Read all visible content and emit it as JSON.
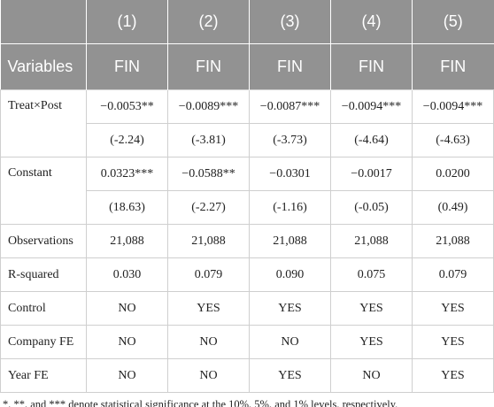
{
  "table": {
    "column_numbers": [
      "(1)",
      "(2)",
      "(3)",
      "(4)",
      "(5)"
    ],
    "variables_label": "Variables",
    "dependent_variables": [
      "FIN",
      "FIN",
      "FIN",
      "FIN",
      "FIN"
    ],
    "rows": [
      {
        "label": "Treat×Post",
        "values": [
          "−0.0053**",
          "−0.0089***",
          "−0.0087***",
          "−0.0094***",
          "−0.0094***"
        ],
        "t_stats": [
          "(-2.24)",
          "(-3.81)",
          "(-3.73)",
          "(-4.64)",
          "(-4.63)"
        ]
      },
      {
        "label": "Constant",
        "values": [
          "0.0323***",
          "−0.0588**",
          "−0.0301",
          "−0.0017",
          "0.0200"
        ],
        "t_stats": [
          "(18.63)",
          "(-2.27)",
          "(-1.16)",
          "(-0.05)",
          "(0.49)"
        ]
      },
      {
        "label": "Observations",
        "values": [
          "21,088",
          "21,088",
          "21,088",
          "21,088",
          "21,088"
        ]
      },
      {
        "label": "R-squared",
        "values": [
          "0.030",
          "0.079",
          "0.090",
          "0.075",
          "0.079"
        ]
      },
      {
        "label": "Control",
        "values": [
          "NO",
          "YES",
          "YES",
          "YES",
          "YES"
        ]
      },
      {
        "label": "Company FE",
        "values": [
          "NO",
          "NO",
          "NO",
          "YES",
          "YES"
        ]
      },
      {
        "label": "Year FE",
        "values": [
          "NO",
          "NO",
          "YES",
          "NO",
          "YES"
        ]
      }
    ]
  },
  "footnote": "*, **, and *** denote statistical significance at the 10%, 5%, and 1% levels, respectively."
}
